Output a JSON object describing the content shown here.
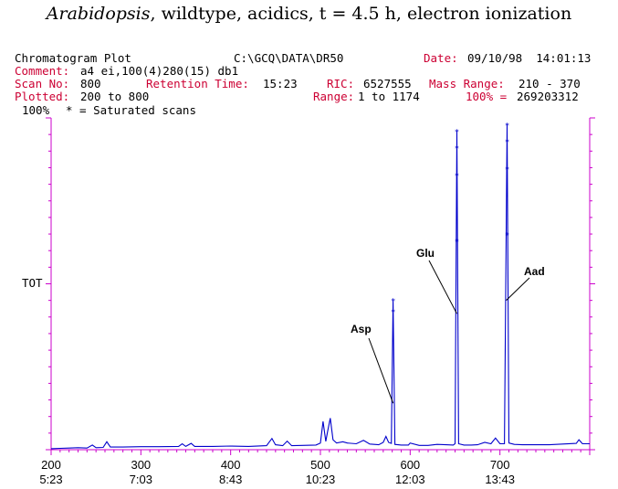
{
  "title": {
    "italic": "Arabidopsis",
    "rest": ", wildtype, acidics, t = 4.5 h, electron ionization"
  },
  "header": {
    "plot_name": "Chromatogram Plot",
    "path": "C:\\GCQ\\DATA\\DR50",
    "date_label": "Date:",
    "date_value": "09/10/98  14:01:13",
    "comment_label": "Comment:",
    "comment_value": "a4 ei,100(4)280(15) db1",
    "scan_label": "Scan No:",
    "scan_value": "800",
    "retention_label": "Retention Time:",
    "retention_value": "15:23",
    "ric_label": "RIC:",
    "ric_value": "6527555",
    "mass_range_label": "Mass Range:",
    "mass_range_value": "210 - 370",
    "plotted_label": "Plotted:",
    "plotted_value": "200 to 800",
    "range_label": "Range:",
    "range_value": "1 to 1174",
    "pct_label": "100% =",
    "pct_value": "269203312",
    "scale_top": "100%",
    "saturated_note": "* = Saturated scans",
    "y_label": "TOT"
  },
  "colors": {
    "trace": "#0000cc",
    "axis": "#cc00cc",
    "header_red": "#cc0033",
    "text": "#000000"
  },
  "chart_data": {
    "type": "line",
    "x_scan_ticks": [
      "200",
      "300",
      "400",
      "500",
      "600",
      "700"
    ],
    "x_time_ticks": [
      "5:23",
      "7:03",
      "8:43",
      "10:23",
      "12:03",
      "13:43"
    ],
    "x_scan_values": [
      200,
      300,
      400,
      500,
      600,
      700
    ],
    "xlim": [
      200,
      800
    ],
    "ylim": [
      0,
      100
    ],
    "y_label": "TOT",
    "peaks": [
      {
        "label": "Asp",
        "scan": 581,
        "intensity": 45
      },
      {
        "label": "Glu",
        "scan": 652,
        "intensity": 96
      },
      {
        "label": "Aad",
        "scan": 708,
        "intensity": 98
      }
    ],
    "trace": [
      [
        200,
        0.3
      ],
      [
        210,
        0.4
      ],
      [
        220,
        0.5
      ],
      [
        230,
        0.6
      ],
      [
        240,
        0.5
      ],
      [
        246,
        1.4
      ],
      [
        250,
        0.6
      ],
      [
        258,
        0.7
      ],
      [
        262,
        2.4
      ],
      [
        266,
        0.8
      ],
      [
        280,
        0.8
      ],
      [
        300,
        0.9
      ],
      [
        320,
        0.9
      ],
      [
        342,
        1.0
      ],
      [
        346,
        1.8
      ],
      [
        350,
        1.0
      ],
      [
        356,
        1.9
      ],
      [
        360,
        1.0
      ],
      [
        380,
        1.0
      ],
      [
        400,
        1.1
      ],
      [
        420,
        1.0
      ],
      [
        440,
        1.2
      ],
      [
        446,
        3.4
      ],
      [
        450,
        1.5
      ],
      [
        458,
        1.2
      ],
      [
        463,
        2.6
      ],
      [
        468,
        1.2
      ],
      [
        480,
        1.3
      ],
      [
        495,
        1.4
      ],
      [
        500,
        2.0
      ],
      [
        503,
        8.5
      ],
      [
        506,
        2.5
      ],
      [
        508,
        5.5
      ],
      [
        511,
        9.5
      ],
      [
        514,
        3.0
      ],
      [
        518,
        2.0
      ],
      [
        525,
        2.4
      ],
      [
        530,
        2.0
      ],
      [
        540,
        1.8
      ],
      [
        548,
        2.8
      ],
      [
        555,
        1.7
      ],
      [
        565,
        1.5
      ],
      [
        570,
        2.2
      ],
      [
        573,
        4.0
      ],
      [
        576,
        2.2
      ],
      [
        579,
        1.9
      ],
      [
        581,
        45
      ],
      [
        583,
        1.6
      ],
      [
        590,
        1.4
      ],
      [
        598,
        1.4
      ],
      [
        600,
        2.0
      ],
      [
        610,
        1.3
      ],
      [
        620,
        1.3
      ],
      [
        630,
        1.6
      ],
      [
        640,
        1.5
      ],
      [
        648,
        1.4
      ],
      [
        650,
        1.8
      ],
      [
        652,
        96
      ],
      [
        654,
        1.8
      ],
      [
        660,
        1.4
      ],
      [
        668,
        1.4
      ],
      [
        675,
        1.5
      ],
      [
        683,
        2.2
      ],
      [
        690,
        1.8
      ],
      [
        695,
        3.5
      ],
      [
        700,
        1.8
      ],
      [
        705,
        1.8
      ],
      [
        708,
        98
      ],
      [
        710,
        2.0
      ],
      [
        716,
        1.6
      ],
      [
        725,
        1.5
      ],
      [
        740,
        1.5
      ],
      [
        755,
        1.5
      ],
      [
        770,
        1.7
      ],
      [
        785,
        1.9
      ],
      [
        788,
        3.0
      ],
      [
        792,
        1.8
      ],
      [
        800,
        1.8
      ]
    ]
  }
}
